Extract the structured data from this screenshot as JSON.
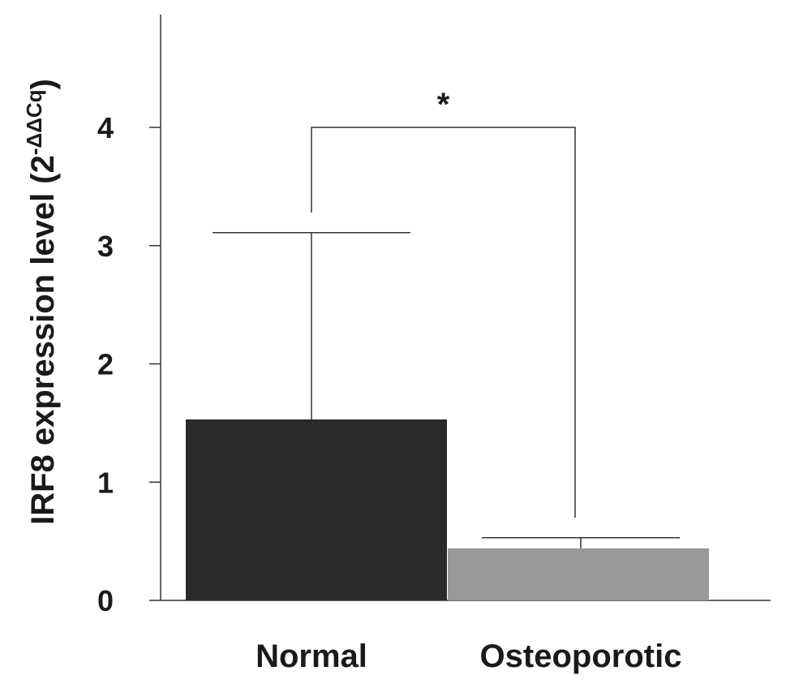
{
  "chart_data": {
    "type": "bar",
    "categories": [
      "Normal",
      "Osteoporotic"
    ],
    "values": [
      1.53,
      0.44
    ],
    "error_upper": [
      3.11,
      0.53
    ],
    "ylabel_main": "IRF8 expression level (2",
    "ylabel_exponent": "-ΔΔCq",
    "ylabel_close": ")",
    "ylim": [
      0,
      4.3
    ],
    "yticks": [
      0,
      1,
      2,
      3,
      4
    ],
    "significance": {
      "label": "*",
      "between": [
        "Normal",
        "Osteoporotic"
      ],
      "level": 4.0
    },
    "colors": [
      "#2a2a2a",
      "#999999"
    ],
    "grid": false,
    "legend": "none"
  }
}
